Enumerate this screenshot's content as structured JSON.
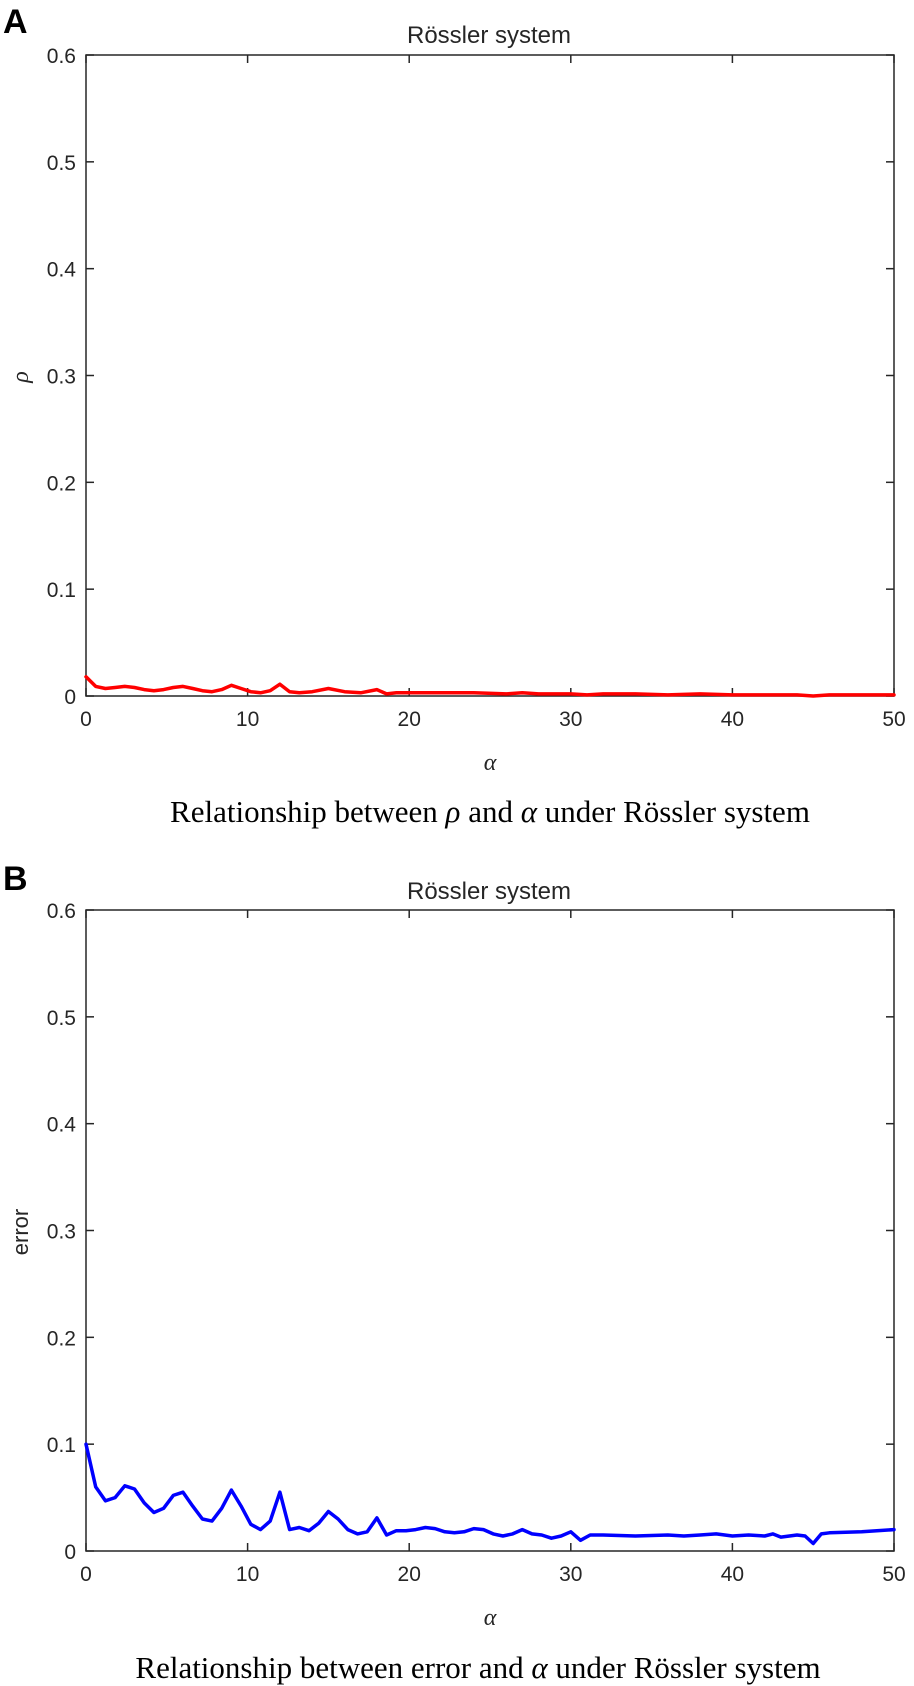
{
  "panels": [
    {
      "letter": "A",
      "caption": {
        "before": "Relationship between ",
        "symbol1": "ρ",
        "middle": " and ",
        "symbol2": "α",
        "after": " under Rössler system"
      }
    },
    {
      "letter": "B",
      "caption": {
        "before": "Relationship between error and ",
        "symbol1": "",
        "middle": "",
        "symbol2": "α",
        "after": " under Rössler system"
      }
    }
  ],
  "chart_data": [
    {
      "type": "line",
      "title": "Rössler system",
      "xlabel": "α",
      "ylabel": "ρ",
      "xlim": [
        0,
        50
      ],
      "ylim": [
        0,
        0.6
      ],
      "xticks": [
        0,
        10,
        20,
        30,
        40,
        50
      ],
      "yticks": [
        0,
        0.1,
        0.2,
        0.3,
        0.4,
        0.5,
        0.6
      ],
      "grid": false,
      "color": "#ff0000",
      "series": [
        {
          "x": [
            0,
            0.6,
            1.2,
            1.8,
            2.4,
            3.0,
            3.6,
            4.2,
            4.8,
            5.4,
            6.0,
            6.6,
            7.2,
            7.8,
            8.4,
            9.0,
            9.6,
            10.2,
            10.8,
            11.4,
            12.0,
            12.6,
            13.2,
            14.0,
            15.0,
            16.0,
            17.0,
            18.0,
            18.6,
            19.2,
            20,
            22,
            24,
            26,
            27,
            28,
            29,
            30,
            31,
            32,
            34,
            36,
            38,
            40,
            42,
            44,
            45,
            46,
            48,
            50
          ],
          "y": [
            0.018,
            0.009,
            0.007,
            0.008,
            0.009,
            0.008,
            0.006,
            0.005,
            0.006,
            0.008,
            0.009,
            0.007,
            0.005,
            0.004,
            0.006,
            0.01,
            0.007,
            0.004,
            0.003,
            0.005,
            0.011,
            0.004,
            0.003,
            0.004,
            0.007,
            0.004,
            0.003,
            0.006,
            0.002,
            0.003,
            0.003,
            0.003,
            0.003,
            0.002,
            0.003,
            0.002,
            0.002,
            0.002,
            0.001,
            0.002,
            0.002,
            0.001,
            0.002,
            0.001,
            0.001,
            0.001,
            0.0,
            0.001,
            0.001,
            0.001
          ]
        }
      ]
    },
    {
      "type": "line",
      "title": "Rössler system",
      "xlabel": "α",
      "ylabel": "error",
      "xlim": [
        0,
        50
      ],
      "ylim": [
        0,
        0.6
      ],
      "xticks": [
        0,
        10,
        20,
        30,
        40,
        50
      ],
      "yticks": [
        0,
        0.1,
        0.2,
        0.3,
        0.4,
        0.5,
        0.6
      ],
      "grid": false,
      "color": "#0000ff",
      "series": [
        {
          "x": [
            0,
            0.6,
            1.2,
            1.8,
            2.4,
            3.0,
            3.6,
            4.2,
            4.8,
            5.4,
            6.0,
            6.6,
            7.2,
            7.8,
            8.4,
            9.0,
            9.6,
            10.2,
            10.8,
            11.4,
            12.0,
            12.6,
            13.2,
            13.8,
            14.4,
            15.0,
            15.6,
            16.2,
            16.8,
            17.4,
            18.0,
            18.6,
            19.2,
            19.8,
            20.4,
            21.0,
            21.6,
            22.2,
            22.8,
            23.4,
            24.0,
            24.6,
            25.2,
            25.8,
            26.4,
            27.0,
            27.6,
            28.2,
            28.8,
            29.4,
            30.0,
            30.6,
            31.2,
            32,
            34,
            36,
            37,
            38,
            39,
            40,
            41,
            42,
            42.5,
            43,
            44,
            44.5,
            45,
            45.5,
            46,
            48,
            50
          ],
          "y": [
            0.1,
            0.06,
            0.047,
            0.05,
            0.061,
            0.058,
            0.045,
            0.036,
            0.04,
            0.052,
            0.055,
            0.042,
            0.03,
            0.028,
            0.04,
            0.057,
            0.042,
            0.025,
            0.02,
            0.028,
            0.055,
            0.02,
            0.022,
            0.019,
            0.026,
            0.037,
            0.03,
            0.02,
            0.016,
            0.018,
            0.031,
            0.015,
            0.019,
            0.019,
            0.02,
            0.022,
            0.021,
            0.018,
            0.017,
            0.018,
            0.021,
            0.02,
            0.016,
            0.014,
            0.016,
            0.02,
            0.016,
            0.015,
            0.012,
            0.014,
            0.018,
            0.01,
            0.015,
            0.015,
            0.014,
            0.015,
            0.014,
            0.015,
            0.016,
            0.014,
            0.015,
            0.014,
            0.016,
            0.013,
            0.015,
            0.014,
            0.007,
            0.016,
            0.017,
            0.018,
            0.02
          ]
        }
      ]
    }
  ]
}
